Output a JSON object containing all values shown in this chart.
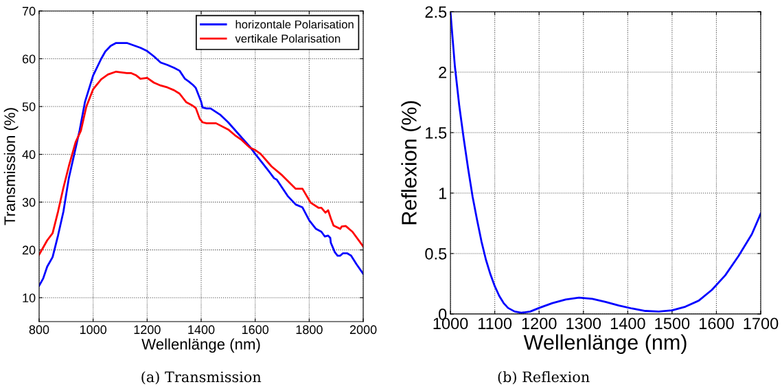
{
  "chart_data": [
    {
      "type": "line",
      "xlabel": "Wellenlänge (nm)",
      "ylabel": "Transmission (%)",
      "xlim": [
        800,
        2000
      ],
      "xticks": [
        800,
        1000,
        1200,
        1400,
        1600,
        1800,
        2000
      ],
      "ylim": [
        5,
        70
      ],
      "yticks": [
        10,
        20,
        30,
        40,
        50,
        60,
        70
      ],
      "grid": true,
      "legend": "top right",
      "line_style": "solid",
      "annotations": [
        "(a) Transmission"
      ],
      "series": [
        {
          "name": "horizontale Polarisation",
          "color": "#0000ff",
          "x": [
            800,
            815,
            830,
            850,
            870,
            890,
            910,
            930,
            950,
            970,
            1000,
            1030,
            1045,
            1065,
            1085,
            1125,
            1150,
            1175,
            1200,
            1225,
            1250,
            1275,
            1300,
            1320,
            1340,
            1355,
            1370,
            1380,
            1400,
            1405,
            1420,
            1435,
            1470,
            1500,
            1550,
            1580,
            1600,
            1650,
            1670,
            1680,
            1720,
            1750,
            1775,
            1800,
            1825,
            1845,
            1858,
            1870,
            1878,
            1880,
            1895,
            1905,
            1915,
            1925,
            1940,
            1955,
            1975,
            2000
          ],
          "values": [
            12.5,
            14,
            16.5,
            18.5,
            23,
            28,
            35,
            40,
            45,
            51,
            56.5,
            60,
            61.5,
            62.7,
            63.3,
            63.3,
            62.8,
            62.3,
            61.6,
            60.5,
            59.2,
            58.7,
            58.1,
            57.5,
            55.8,
            55.2,
            54.5,
            53.9,
            51,
            49.8,
            49.6,
            49.6,
            48.3,
            46.7,
            43.5,
            41.6,
            40.1,
            36.5,
            35,
            34.7,
            31.3,
            29.5,
            28.9,
            26.2,
            24.4,
            23.8,
            22.8,
            23,
            22.5,
            21.5,
            19.5,
            18.8,
            18.8,
            19.3,
            19.3,
            18.8,
            17,
            15
          ]
        },
        {
          "name": "vertikale Polarisation",
          "color": "#ff0000",
          "x": [
            800,
            815,
            830,
            850,
            870,
            890,
            910,
            935,
            955,
            975,
            1000,
            1030,
            1055,
            1085,
            1125,
            1140,
            1160,
            1175,
            1200,
            1225,
            1250,
            1275,
            1300,
            1320,
            1345,
            1365,
            1380,
            1395,
            1405,
            1420,
            1455,
            1500,
            1525,
            1550,
            1580,
            1600,
            1620,
            1660,
            1700,
            1750,
            1775,
            1805,
            1835,
            1845,
            1860,
            1870,
            1880,
            1890,
            1915,
            1920,
            1935,
            1960,
            2000
          ],
          "values": [
            19,
            20.5,
            22,
            23.5,
            28,
            33,
            37.5,
            42.5,
            45,
            50,
            53.6,
            55.7,
            56.7,
            57.3,
            57,
            57,
            56.5,
            55.8,
            56,
            55,
            54.4,
            54,
            53.4,
            52.7,
            50.9,
            50.3,
            49.7,
            47.4,
            46.7,
            46.5,
            46.5,
            45.2,
            44,
            43,
            41.4,
            40.9,
            40.1,
            37.5,
            35.6,
            32.8,
            32.8,
            29.9,
            28.8,
            28.8,
            27.8,
            28.3,
            26.6,
            25.1,
            24.4,
            24.9,
            25,
            23.8,
            20.7
          ]
        }
      ]
    },
    {
      "type": "line",
      "xlabel": "Wellenlänge (nm)",
      "ylabel": "Reflexion (%)",
      "xlim": [
        1000,
        1700
      ],
      "xticks": [
        1000,
        1100,
        1200,
        1300,
        1400,
        1500,
        1600,
        1700
      ],
      "ylim": [
        0,
        2.5
      ],
      "yticks": [
        0,
        0.5,
        1,
        1.5,
        2,
        2.5
      ],
      "grid": true,
      "line_style": "solid",
      "annotations": [
        "(b) Reflexion"
      ],
      "series": [
        {
          "color": "#0000ff",
          "x": [
            1000,
            1010,
            1020,
            1030,
            1040,
            1050,
            1060,
            1070,
            1080,
            1090,
            1100,
            1110,
            1120,
            1130,
            1145,
            1160,
            1180,
            1200,
            1230,
            1260,
            1290,
            1320,
            1350,
            1380,
            1410,
            1440,
            1470,
            1500,
            1530,
            1560,
            1590,
            1620,
            1650,
            1680,
            1700
          ],
          "values": [
            2.5,
            2.05,
            1.72,
            1.45,
            1.2,
            0.97,
            0.78,
            0.6,
            0.45,
            0.33,
            0.23,
            0.15,
            0.09,
            0.05,
            0.02,
            0.01,
            0.02,
            0.05,
            0.09,
            0.12,
            0.135,
            0.125,
            0.1,
            0.07,
            0.045,
            0.025,
            0.02,
            0.03,
            0.06,
            0.11,
            0.2,
            0.32,
            0.48,
            0.66,
            0.83
          ]
        }
      ]
    }
  ]
}
